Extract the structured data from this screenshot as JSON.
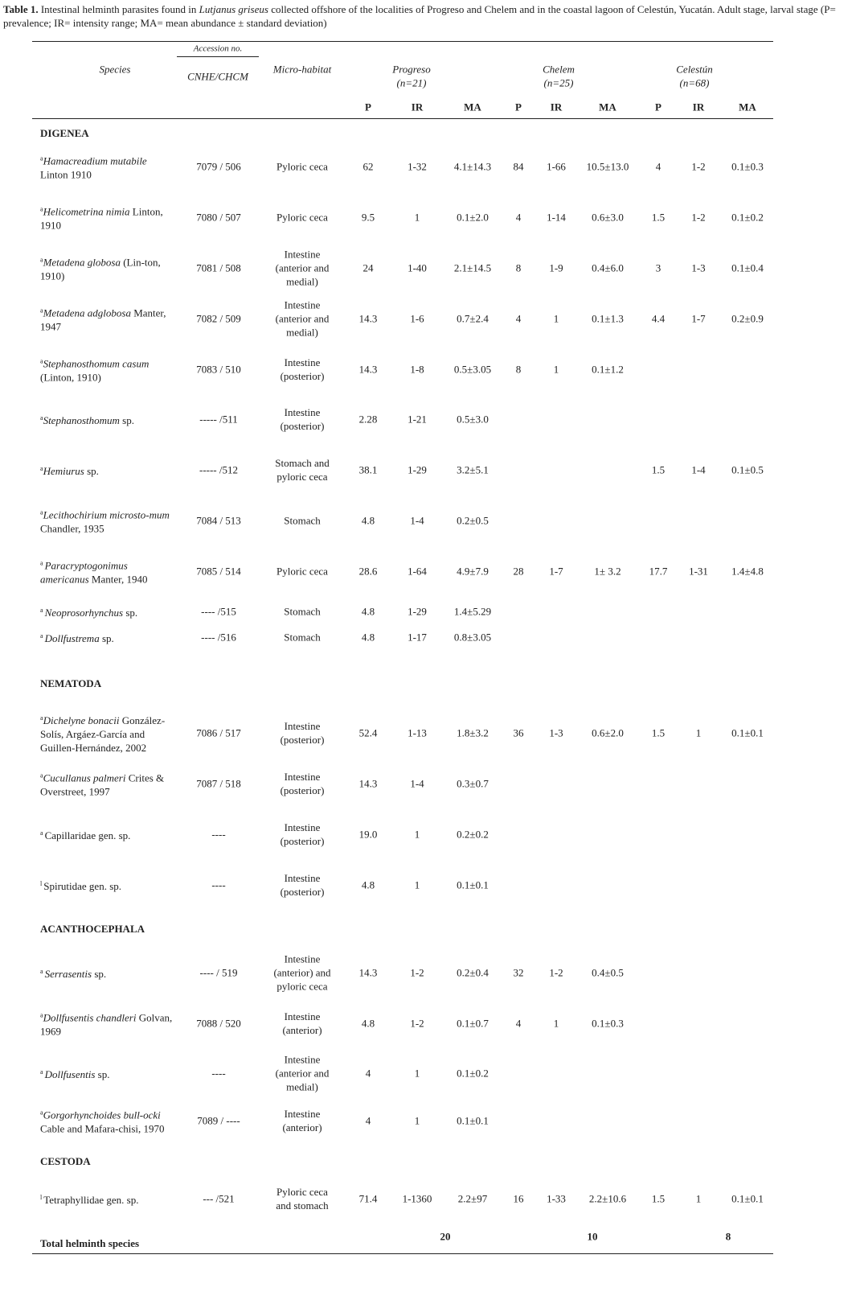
{
  "caption": {
    "label": "Table 1.",
    "text_1": " Intestinal helminth parasites found in ",
    "host": "Lutjanus griseus",
    "text_2": " collected offshore of the localities of Progreso and Chelem and in the coastal lagoon of Celestún, Yucatán. Adult stage, larval stage (P= prevalence; IR= intensity range; MA= mean abundance ± standard deviation)"
  },
  "header": {
    "species": "Species",
    "accession_group": "Accession no.",
    "accession": "CNHE/CHCM",
    "habitat": "Micro-habitat",
    "localities": [
      {
        "name": "Progreso",
        "n": "(n=21)"
      },
      {
        "name": "Chelem",
        "n": "(n=25)"
      },
      {
        "name": "Celestún",
        "n": "(n=68)"
      }
    ],
    "subcols": [
      "P",
      "IR",
      "MA"
    ]
  },
  "sections": [
    {
      "name": "DIGENEA",
      "rows": [
        {
          "sup": "a",
          "italic": "Hamacreadium mutabile",
          "authority": " Linton 1910",
          "acc": "7079 / 506",
          "hab": "Pyloric ceca",
          "vals": [
            "62",
            "1-32",
            "4.1±14.3",
            "84",
            "1-66",
            "10.5±13.0",
            "4",
            "1-2",
            "0.1±0.3"
          ]
        },
        {
          "sup": "a",
          "italic": "Helicometrina nimia",
          "authority": " Linton, 1910",
          "acc": "7080 / 507",
          "hab": "Pyloric ceca",
          "vals": [
            "9.5",
            "1",
            "0.1±2.0",
            "4",
            "1-14",
            "0.6±3.0",
            "1.5",
            "1-2",
            "0.1±0.2"
          ]
        },
        {
          "sup": "a",
          "italic": "Metadena globosa",
          "authority": " (Lin-ton, 1910)",
          "acc": "7081 / 508",
          "hab": "Intestine (anterior and medial)",
          "vals": [
            "24",
            "1-40",
            "2.1±14.5",
            "8",
            "1-9",
            "0.4±6.0",
            "3",
            "1-3",
            "0.1±0.4"
          ]
        },
        {
          "sup": "a",
          "italic": "Metadena adglobosa",
          "authority": " Manter, 1947",
          "acc": "7082 / 509",
          "hab": "Intestine (anterior and medial)",
          "vals": [
            "14.3",
            "1-6",
            "0.7±2.4",
            "4",
            "1",
            "0.1±1.3",
            "4.4",
            "1-7",
            "0.2±0.9"
          ]
        },
        {
          "sup": "a",
          "italic": "Stephanosthomum casum",
          "authority": " (Linton, 1910)",
          "acc": "7083 / 510",
          "hab": "Intestine (posterior)",
          "vals": [
            "14.3",
            "1-8",
            "0.5±3.05",
            "8",
            "1",
            "0.1±1.2",
            "",
            "",
            ""
          ]
        },
        {
          "sup": "a",
          "italic": "Stephanosthomum",
          "authority": " sp.",
          "acc": "----- /511",
          "hab": "Intestine (posterior)",
          "vals": [
            "2.28",
            "1-21",
            "0.5±3.0",
            "",
            "",
            "",
            "",
            "",
            ""
          ]
        },
        {
          "sup": "a",
          "italic": "Hemiurus",
          "authority": " sp.",
          "acc": "----- /512",
          "hab": "Stomach and pyloric ceca",
          "vals": [
            "38.1",
            "1-29",
            "3.2±5.1",
            "",
            "",
            "",
            "1.5",
            "1-4",
            "0.1±0.5"
          ]
        },
        {
          "sup": "a",
          "italic": "Lecithochirium microsto-mum",
          "authority": " Chandler, 1935",
          "acc": "7084 / 513",
          "hab": "Stomach",
          "vals": [
            "4.8",
            "1-4",
            "0.2±0.5",
            "",
            "",
            "",
            "",
            "",
            ""
          ]
        },
        {
          "sup": "a ",
          "italic": "Paracryptogonimus americanus",
          "authority": "  Manter, 1940",
          "acc": "7085 / 514",
          "hab": "Pyloric ceca",
          "vals": [
            "28.6",
            "1-64",
            "4.9±7.9",
            "28",
            "1-7",
            "1± 3.2",
            "17.7",
            "1-31",
            "1.4±4.8"
          ]
        },
        {
          "sup": "a ",
          "italic": "Neoprosorhynchus",
          "authority": " sp.",
          "acc": "---- /515",
          "hab": "Stomach",
          "vals": [
            "4.8",
            "1-29",
            "1.4±5.29",
            "",
            "",
            "",
            "",
            "",
            ""
          ]
        },
        {
          "sup": "a ",
          "italic": "Dollfustrema",
          "authority": " sp.",
          "acc": "---- /516",
          "hab": "Stomach",
          "vals": [
            "4.8",
            "1-17",
            "0.8±3.05",
            "",
            "",
            "",
            "",
            "",
            ""
          ]
        }
      ]
    },
    {
      "name": "NEMATODA",
      "rows": [
        {
          "sup": "a",
          "italic": "Dichelyne bonacii",
          "authority": " González-Solís, Argáez-García and Guillen-Hernández, 2002",
          "acc": "7086 / 517",
          "hab": "Intestine (posterior)",
          "vals": [
            "52.4",
            "1-13",
            "1.8±3.2",
            "36",
            "1-3",
            "0.6±2.0",
            "1.5",
            "1",
            "0.1±0.1"
          ]
        },
        {
          "sup": "a",
          "italic": "Cucullanus palmeri",
          "authority": " Crites & Overstreet, 1997",
          "acc": "7087 / 518",
          "hab": "Intestine (posterior)",
          "vals": [
            "14.3",
            "1-4",
            "0.3±0.7",
            "",
            "",
            "",
            "",
            "",
            ""
          ]
        },
        {
          "sup": "a ",
          "italic": "",
          "authority": "Capillaridae gen. sp.",
          "acc": "----",
          "hab": "Intestine (posterior)",
          "vals": [
            "19.0",
            "1",
            "0.2±0.2",
            "",
            "",
            "",
            "",
            "",
            ""
          ]
        },
        {
          "sup": "l ",
          "italic": "",
          "authority": "Spirutidae gen. sp.",
          "acc": "----",
          "hab": "Intestine (posterior)",
          "vals": [
            "4.8",
            "1",
            "0.1±0.1",
            "",
            "",
            "",
            "",
            "",
            ""
          ]
        }
      ]
    },
    {
      "name": "ACANTHOCEPHALA",
      "rows": [
        {
          "sup": "a ",
          "italic": "Serrasentis",
          "authority": " sp.",
          "acc": "---- / 519",
          "hab": "Intestine (anterior) and pyloric ceca",
          "vals": [
            "14.3",
            "1-2",
            "0.2±0.4",
            "32",
            "1-2",
            "0.4±0.5",
            "",
            "",
            ""
          ]
        },
        {
          "sup": "a",
          "italic": "Dollfusentis chandleri",
          "authority": " Golvan, 1969",
          "acc": "7088 / 520",
          "hab": "Intestine (anterior)",
          "vals": [
            "4.8",
            "1-2",
            "0.1±0.7",
            "4",
            "1",
            "0.1±0.3",
            "",
            "",
            ""
          ]
        },
        {
          "sup": "a ",
          "italic": "Dollfusentis",
          "authority": " sp.",
          "acc": "----",
          "hab": "Intestine (anterior and medial)",
          "vals": [
            "4",
            "1",
            "0.1±0.2",
            "",
            "",
            "",
            "",
            "",
            ""
          ]
        },
        {
          "sup": "a",
          "italic": "Gorgorhynchoides bull-ocki",
          "authority": " Cable and Mafara-chisi, 1970",
          "acc": "7089 / ----",
          "hab": "Intestine (anterior)",
          "vals": [
            "4",
            "1",
            "0.1±0.1",
            "",
            "",
            "",
            "",
            "",
            ""
          ]
        }
      ]
    },
    {
      "name": "CESTODA",
      "rows": [
        {
          "sup": "l ",
          "italic": "",
          "authority": "Tetraphyllidae gen. sp.",
          "acc": "--- /521",
          "hab": "Pyloric ceca and stomach",
          "vals": [
            "71.4",
            "1-1360",
            "2.2±97",
            "16",
            "1-33",
            "2.2±10.6",
            "1.5",
            "1",
            "0.1±0.1"
          ]
        }
      ]
    }
  ],
  "total": {
    "label": "Total helminth species",
    "values": [
      "20",
      "10",
      "8"
    ]
  }
}
